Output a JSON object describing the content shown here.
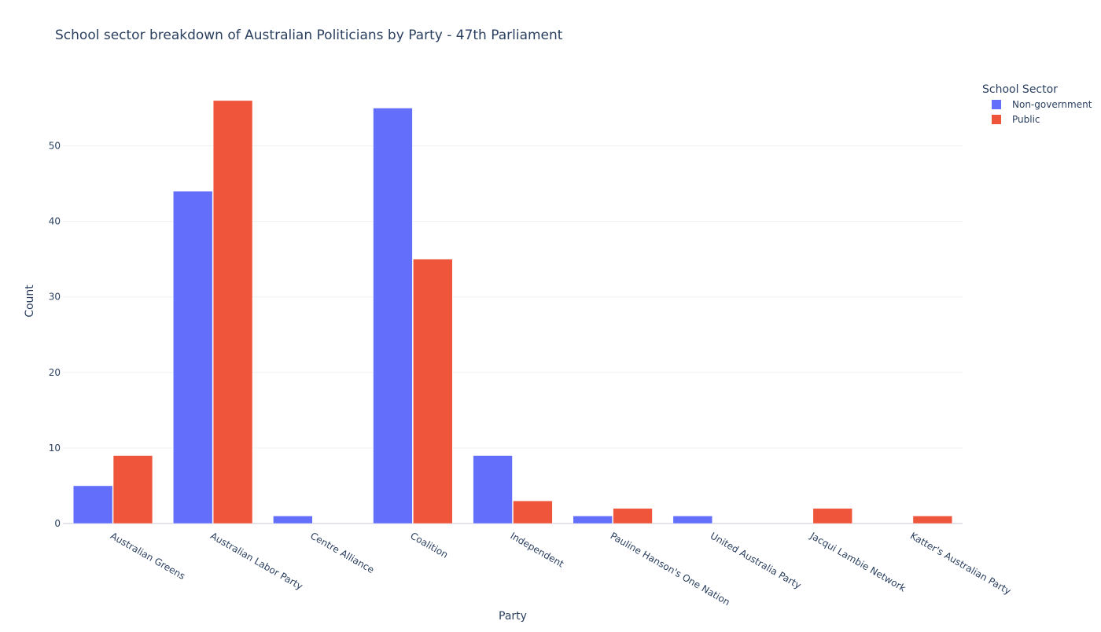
{
  "chart_data": {
    "type": "bar",
    "title": "School sector breakdown of Australian Politicians by Party - 47th Parliament",
    "xlabel": "Party",
    "ylabel": "Count",
    "categories": [
      "Australian Greens",
      "Australian Labor Party",
      "Centre Alliance",
      "Coalition",
      "Independent",
      "Pauline Hanson's One Nation",
      "United Australia Party",
      "Jacqui Lambie Network",
      "Katter's Australian Party"
    ],
    "series": [
      {
        "name": "Non-government",
        "color": "#636efa",
        "values": [
          5,
          44,
          1,
          55,
          9,
          1,
          1,
          0,
          0
        ]
      },
      {
        "name": "Public",
        "color": "#ef553b",
        "values": [
          9,
          56,
          0,
          35,
          3,
          2,
          0,
          2,
          1
        ]
      }
    ],
    "ylim": [
      0,
      58.9
    ],
    "yticks": [
      0,
      10,
      20,
      30,
      40,
      50
    ],
    "grid": true,
    "legend": {
      "title": "School Sector",
      "position": "top-right"
    }
  }
}
